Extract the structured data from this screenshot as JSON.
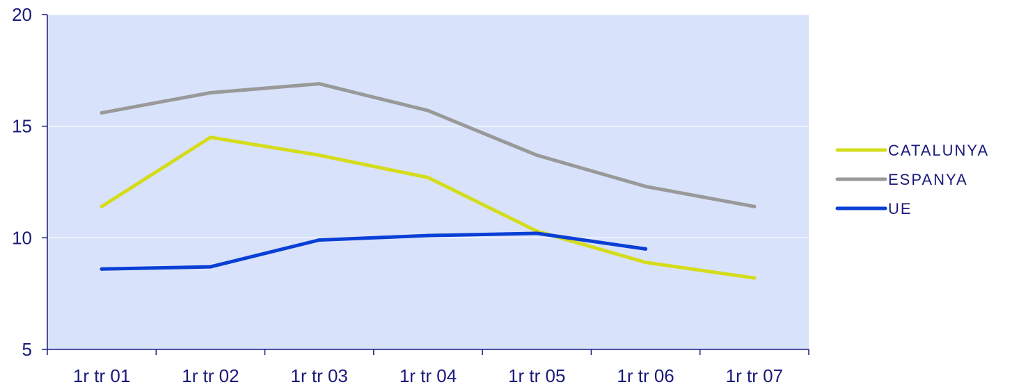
{
  "chart_data": {
    "type": "line",
    "categories": [
      "1r tr 01",
      "1r tr 02",
      "1r tr 03",
      "1r tr 04",
      "1r tr 05",
      "1r tr 06",
      "1r tr 07"
    ],
    "ylim": [
      5,
      20
    ],
    "yticks": [
      5,
      10,
      15,
      20
    ],
    "grid": true,
    "legend_position": "right",
    "plot_background": "#d9e2fb",
    "series": [
      {
        "name": "CATALUNYA",
        "color": "#d4dc1c",
        "values": [
          11.4,
          14.5,
          13.7,
          12.7,
          10.3,
          8.9,
          8.2
        ]
      },
      {
        "name": "ESPANYA",
        "color": "#999999",
        "values": [
          15.6,
          16.5,
          16.9,
          15.7,
          13.7,
          12.3,
          11.4
        ]
      },
      {
        "name": "UE",
        "color": "#0a3fd6",
        "values": [
          8.6,
          8.7,
          9.9,
          10.1,
          10.2,
          9.5,
          null
        ]
      }
    ]
  }
}
